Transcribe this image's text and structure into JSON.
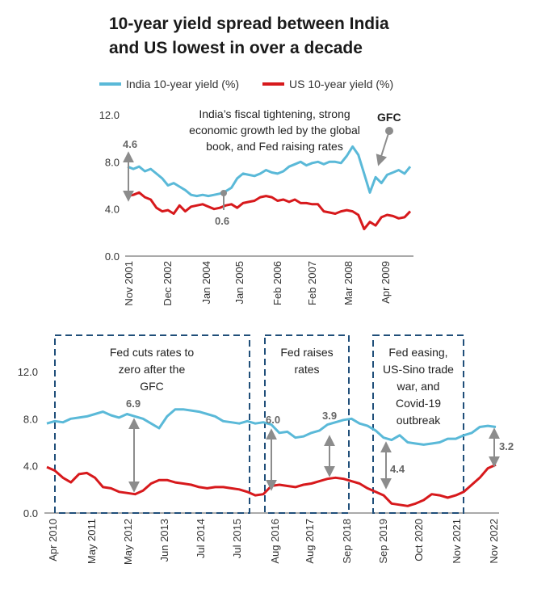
{
  "title_line1": "10-year yield spread between India",
  "title_line2": "and US lowest in over a decade",
  "colors": {
    "india": "#5ab9d8",
    "us": "#d7191c",
    "arrow": "#8c8c8c",
    "box": "#1f4e79"
  },
  "legend": [
    {
      "name": "India 10-year yield (%)",
      "color": "#5ab9d8"
    },
    {
      "name": "US 10-year yield (%)",
      "color": "#d7191c"
    }
  ],
  "chart_data": [
    {
      "type": "line",
      "ylim": [
        0,
        12
      ],
      "yticks": [
        "0.0",
        "4.0",
        "8.0",
        "12.0"
      ],
      "xticks": [
        "Nov 2001",
        "Dec 2002",
        "Jan 2004",
        "Jan 2005",
        "Feb 2006",
        "Feb 2007",
        "Mar 2008",
        "Apr 2009"
      ],
      "annotation": [
        "India’s fiscal tightening, strong",
        "economic growth led by the global",
        "book, and Fed raising rates"
      ],
      "gfc_label": "GFC",
      "gap_labels": [
        "4.6",
        "0.6"
      ],
      "series": [
        {
          "name": "India 10-year yield (%)",
          "values": [
            7.6,
            7.4,
            7.6,
            7.2,
            7.4,
            7.0,
            6.6,
            6.0,
            6.2,
            5.9,
            5.6,
            5.2,
            5.1,
            5.2,
            5.1,
            5.2,
            5.3,
            5.5,
            5.8,
            6.6,
            7.0,
            6.9,
            6.8,
            7.0,
            7.3,
            7.1,
            7.0,
            7.2,
            7.6,
            7.8,
            8.0,
            7.7,
            7.9,
            8.0,
            7.8,
            8.0,
            8.0,
            7.9,
            8.5,
            9.3,
            8.6,
            7.0,
            5.4,
            6.7,
            6.2,
            6.9,
            7.1,
            7.3,
            7.0,
            7.6
          ]
        },
        {
          "name": "US 10-year yield (%)",
          "values": [
            5.1,
            5.2,
            5.4,
            5.0,
            4.8,
            4.1,
            3.8,
            3.9,
            3.6,
            4.3,
            3.8,
            4.2,
            4.3,
            4.4,
            4.2,
            4.0,
            4.1,
            4.3,
            4.4,
            4.1,
            4.5,
            4.6,
            4.7,
            5.0,
            5.1,
            5.0,
            4.7,
            4.8,
            4.6,
            4.8,
            4.5,
            4.5,
            4.4,
            4.4,
            3.8,
            3.7,
            3.6,
            3.8,
            3.9,
            3.8,
            3.5,
            2.3,
            2.9,
            2.6,
            3.3,
            3.5,
            3.4,
            3.2,
            3.3,
            3.8
          ]
        }
      ]
    },
    {
      "type": "line",
      "ylim": [
        0,
        12
      ],
      "yticks": [
        "0.0",
        "4.0",
        "8.0",
        "12.0"
      ],
      "xticks": [
        "Apr 2010",
        "May 2011",
        "May 2012",
        "Jun 2013",
        "Jul 2014",
        "Jul 2015",
        "Aug 2016",
        "Aug 2017",
        "Sep 2018",
        "Sep 2019",
        "Oct 2020",
        "Nov 2021",
        "Nov 2022"
      ],
      "boxes": [
        {
          "lines": [
            "Fed cuts rates to",
            "zero after the",
            "GFC"
          ]
        },
        {
          "lines": [
            "Fed raises",
            "rates"
          ]
        },
        {
          "lines": [
            "Fed easing,",
            "US-Sino trade",
            "war, and",
            "Covid-19",
            "outbreak"
          ]
        }
      ],
      "gap_labels": [
        "6.9",
        "6.0",
        "3.9",
        "4.4",
        "3.2"
      ],
      "series": [
        {
          "name": "India 10-year yield (%)",
          "values": [
            7.6,
            7.8,
            7.7,
            8.0,
            8.1,
            8.2,
            8.4,
            8.6,
            8.3,
            8.1,
            8.4,
            8.2,
            8.0,
            7.6,
            7.2,
            8.2,
            8.8,
            8.8,
            8.7,
            8.6,
            8.4,
            8.2,
            7.8,
            7.7,
            7.6,
            7.8,
            7.6,
            7.7,
            7.5,
            6.8,
            6.9,
            6.4,
            6.5,
            6.8,
            7.0,
            7.5,
            7.7,
            7.9,
            8.0,
            7.6,
            7.4,
            7.0,
            6.4,
            6.2,
            6.6,
            6.0,
            5.9,
            5.8,
            5.9,
            6.0,
            6.3,
            6.3,
            6.6,
            6.8,
            7.3,
            7.4,
            7.3
          ]
        },
        {
          "name": "US 10-year yield (%)",
          "values": [
            3.9,
            3.6,
            3.0,
            2.6,
            3.3,
            3.4,
            3.0,
            2.2,
            2.1,
            1.8,
            1.7,
            1.6,
            1.9,
            2.5,
            2.8,
            2.8,
            2.6,
            2.5,
            2.4,
            2.2,
            2.1,
            2.2,
            2.2,
            2.1,
            2.0,
            1.8,
            1.5,
            1.6,
            2.3,
            2.4,
            2.3,
            2.2,
            2.4,
            2.5,
            2.7,
            2.9,
            3.0,
            2.9,
            2.7,
            2.5,
            2.1,
            1.8,
            1.5,
            0.8,
            0.7,
            0.6,
            0.8,
            1.1,
            1.6,
            1.5,
            1.3,
            1.5,
            1.8,
            2.4,
            3.0,
            3.8,
            4.1
          ]
        }
      ]
    }
  ]
}
